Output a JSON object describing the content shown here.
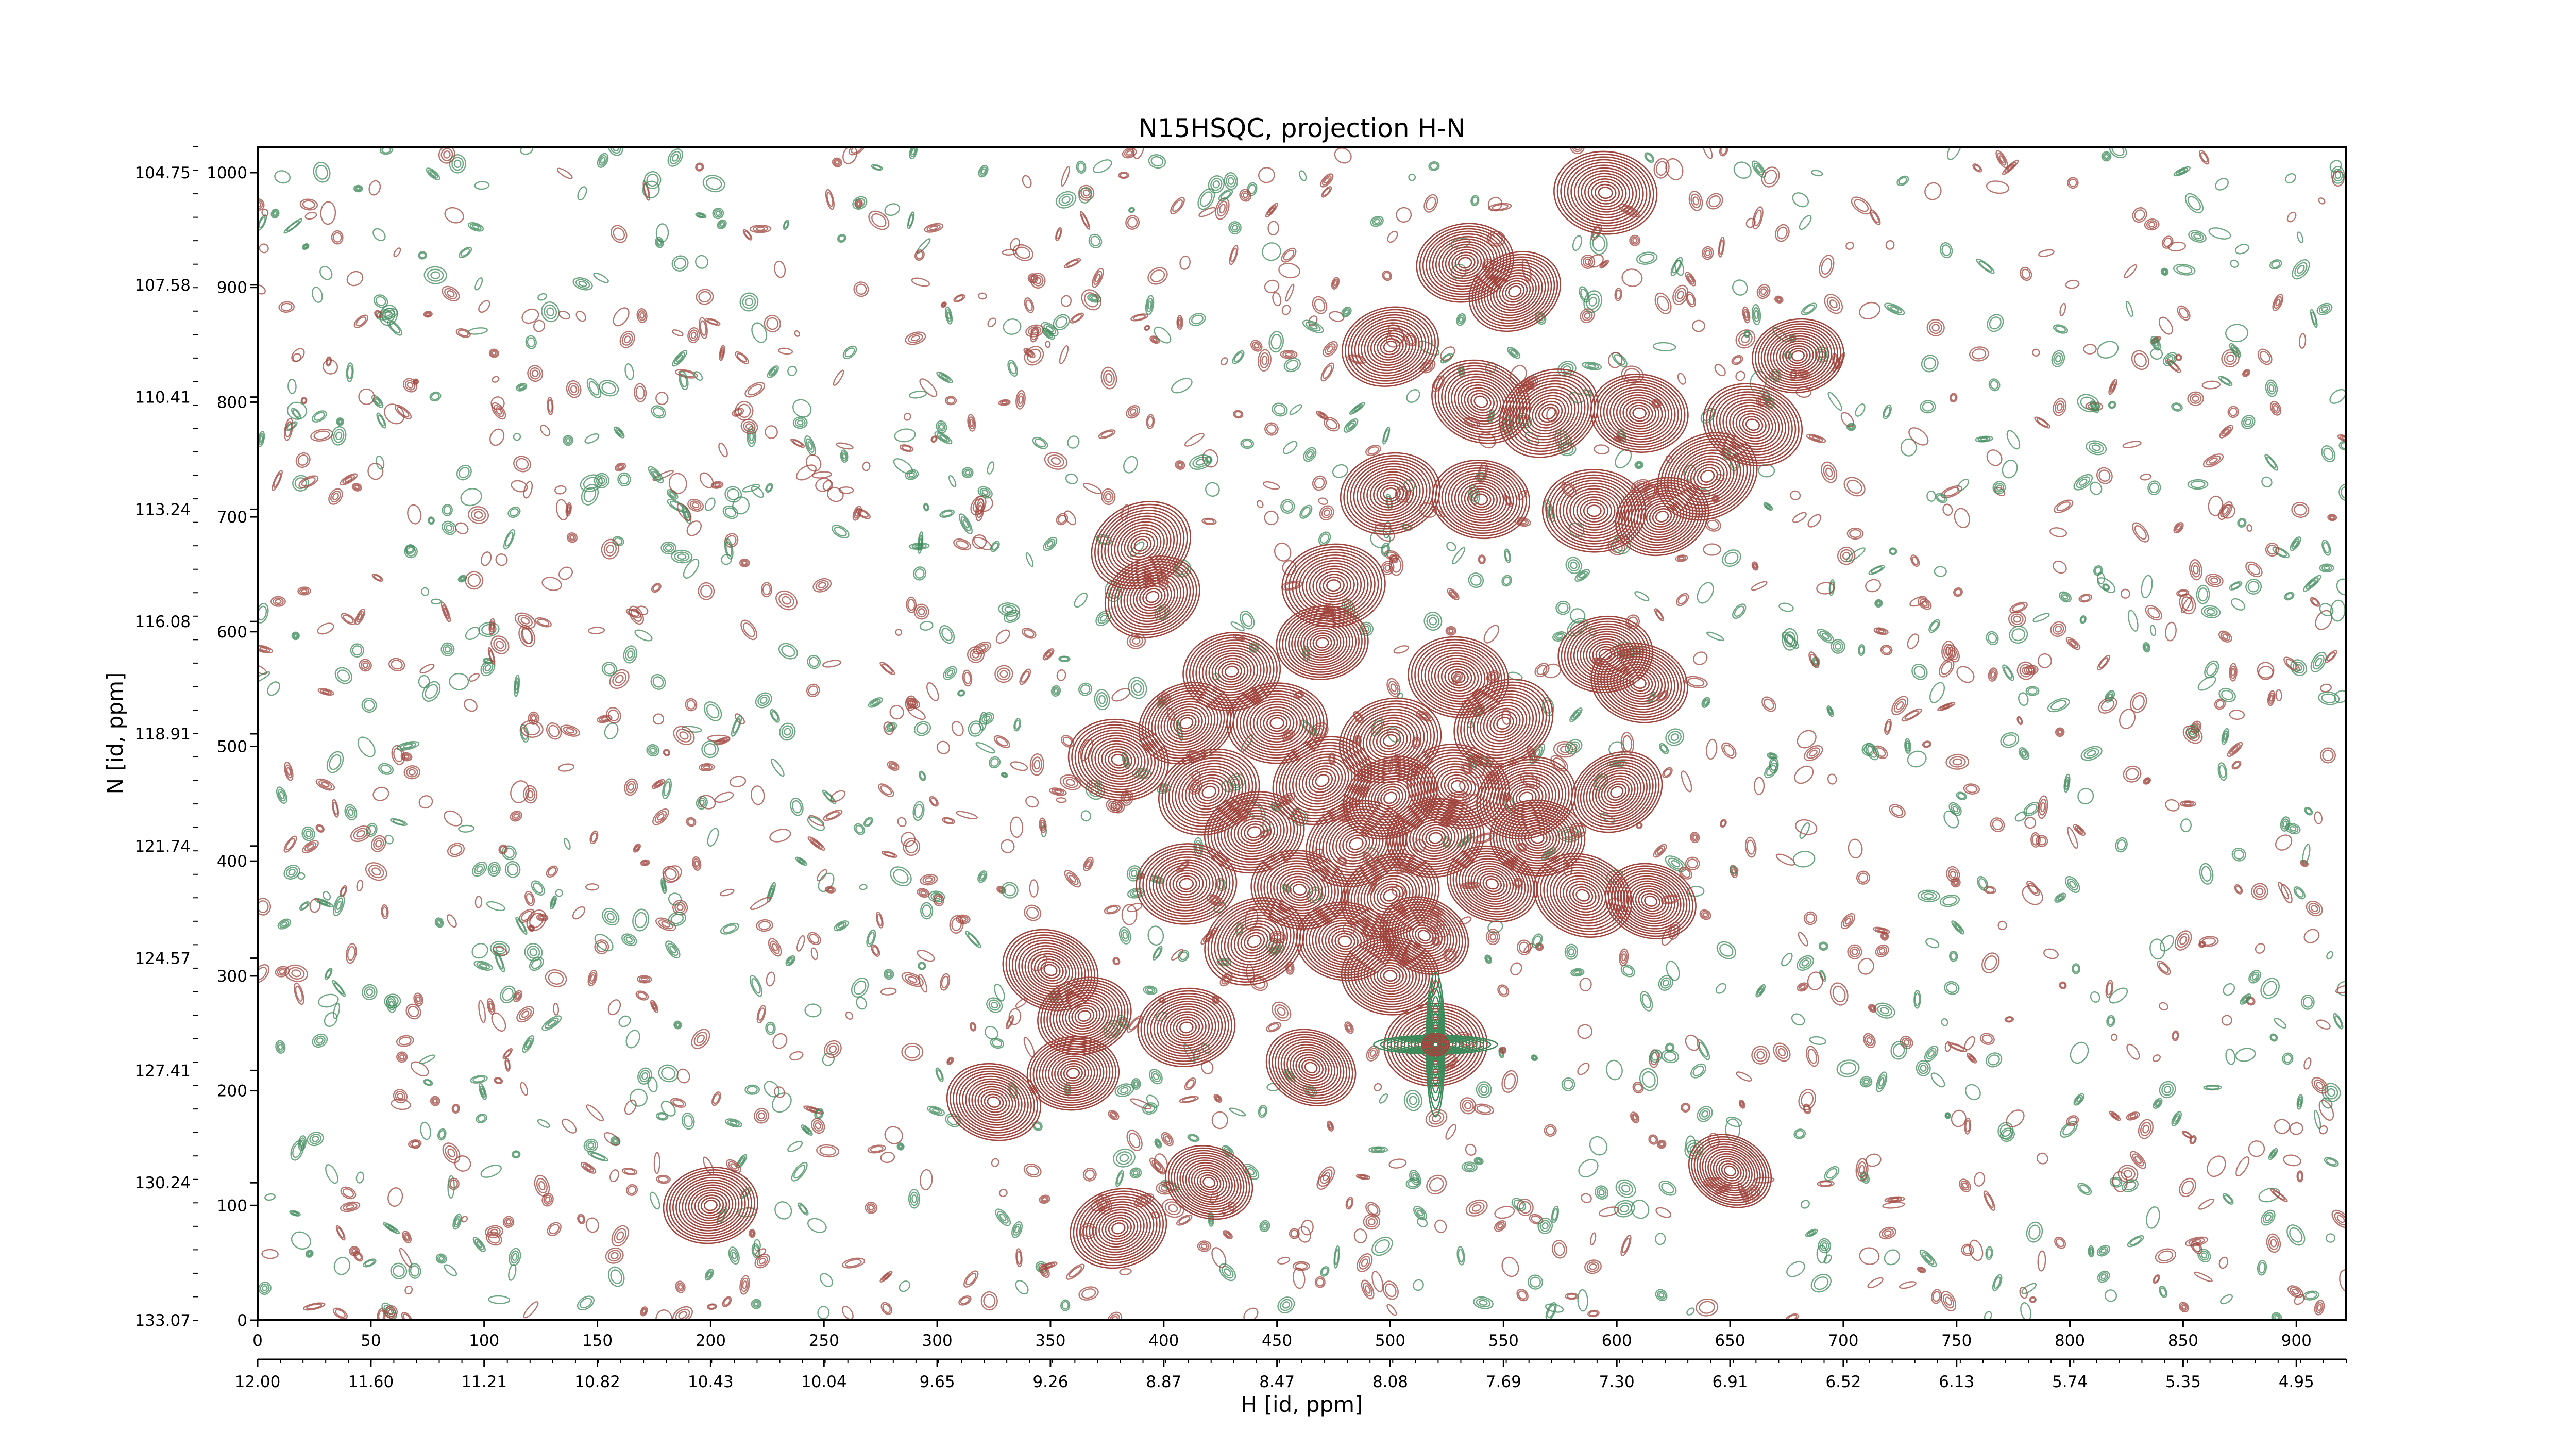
{
  "chart_data": {
    "type": "heatmap",
    "title": "N15HSQC, projection H-N",
    "xlabel": "H [id, ppm]",
    "ylabel": "N [id, ppm]",
    "x_index_ticks": [
      "0",
      "50",
      "100",
      "150",
      "200",
      "250",
      "300",
      "350",
      "400",
      "450",
      "500",
      "550",
      "600",
      "650",
      "700",
      "750",
      "800",
      "850",
      "900"
    ],
    "x_ppm_ticks": [
      "12.00",
      "11.60",
      "11.21",
      "10.82",
      "10.43",
      "10.04",
      "9.65",
      "9.26",
      "8.87",
      "8.47",
      "8.08",
      "7.69",
      "7.30",
      "6.91",
      "6.52",
      "6.13",
      "5.74",
      "5.35",
      "4.95"
    ],
    "y_index_ticks": [
      "1000",
      "900",
      "800",
      "700",
      "600",
      "500",
      "400",
      "300",
      "200",
      "100",
      "0"
    ],
    "y_ppm_ticks": [
      "104.75",
      "107.58",
      "110.41",
      "113.24",
      "116.08",
      "118.91",
      "121.74",
      "124.57",
      "127.41",
      "130.24",
      "133.07"
    ],
    "xlim": [
      0,
      922
    ],
    "ylim": [
      0,
      1022
    ],
    "colors": {
      "positive": "#a0453d",
      "negative": "#3d8a5a"
    },
    "peaks": [
      {
        "x": 595,
        "y": 982,
        "a": 1.0
      },
      {
        "x": 533,
        "y": 921,
        "a": 0.9
      },
      {
        "x": 555,
        "y": 896,
        "a": 0.85
      },
      {
        "x": 500,
        "y": 848,
        "a": 0.9
      },
      {
        "x": 540,
        "y": 800,
        "a": 0.95
      },
      {
        "x": 570,
        "y": 790,
        "a": 1.0
      },
      {
        "x": 610,
        "y": 790,
        "a": 0.9
      },
      {
        "x": 660,
        "y": 780,
        "a": 0.95
      },
      {
        "x": 680,
        "y": 840,
        "a": 0.8
      },
      {
        "x": 640,
        "y": 735,
        "a": 1.0
      },
      {
        "x": 500,
        "y": 720,
        "a": 0.95
      },
      {
        "x": 540,
        "y": 715,
        "a": 0.9
      },
      {
        "x": 590,
        "y": 705,
        "a": 1.0
      },
      {
        "x": 620,
        "y": 700,
        "a": 0.85
      },
      {
        "x": 390,
        "y": 675,
        "a": 1.0
      },
      {
        "x": 395,
        "y": 630,
        "a": 0.9
      },
      {
        "x": 475,
        "y": 640,
        "a": 1.0
      },
      {
        "x": 470,
        "y": 590,
        "a": 0.8
      },
      {
        "x": 430,
        "y": 565,
        "a": 0.9
      },
      {
        "x": 595,
        "y": 580,
        "a": 0.85
      },
      {
        "x": 530,
        "y": 560,
        "a": 0.95
      },
      {
        "x": 550,
        "y": 520,
        "a": 1.0
      },
      {
        "x": 610,
        "y": 555,
        "a": 0.9
      },
      {
        "x": 410,
        "y": 520,
        "a": 0.9
      },
      {
        "x": 450,
        "y": 520,
        "a": 0.95
      },
      {
        "x": 500,
        "y": 505,
        "a": 1.0
      },
      {
        "x": 380,
        "y": 488,
        "a": 0.95
      },
      {
        "x": 420,
        "y": 460,
        "a": 1.0
      },
      {
        "x": 470,
        "y": 470,
        "a": 1.0
      },
      {
        "x": 500,
        "y": 455,
        "a": 0.9
      },
      {
        "x": 530,
        "y": 465,
        "a": 1.0
      },
      {
        "x": 560,
        "y": 455,
        "a": 0.95
      },
      {
        "x": 600,
        "y": 460,
        "a": 0.85
      },
      {
        "x": 440,
        "y": 425,
        "a": 0.95
      },
      {
        "x": 485,
        "y": 415,
        "a": 1.0
      },
      {
        "x": 520,
        "y": 420,
        "a": 0.9
      },
      {
        "x": 565,
        "y": 420,
        "a": 0.85
      },
      {
        "x": 410,
        "y": 380,
        "a": 0.95
      },
      {
        "x": 460,
        "y": 375,
        "a": 0.9
      },
      {
        "x": 500,
        "y": 370,
        "a": 0.95
      },
      {
        "x": 545,
        "y": 380,
        "a": 0.8
      },
      {
        "x": 585,
        "y": 370,
        "a": 0.95
      },
      {
        "x": 615,
        "y": 365,
        "a": 0.8
      },
      {
        "x": 440,
        "y": 330,
        "a": 1.0
      },
      {
        "x": 480,
        "y": 330,
        "a": 0.9
      },
      {
        "x": 515,
        "y": 335,
        "a": 0.8
      },
      {
        "x": 350,
        "y": 305,
        "a": 0.9
      },
      {
        "x": 365,
        "y": 265,
        "a": 0.85
      },
      {
        "x": 410,
        "y": 255,
        "a": 0.9
      },
      {
        "x": 500,
        "y": 300,
        "a": 0.9
      },
      {
        "x": 325,
        "y": 190,
        "a": 0.85
      },
      {
        "x": 360,
        "y": 215,
        "a": 0.8
      },
      {
        "x": 465,
        "y": 220,
        "a": 0.8
      },
      {
        "x": 520,
        "y": 240,
        "a": 1.0
      },
      {
        "x": 200,
        "y": 100,
        "a": 0.85
      },
      {
        "x": 380,
        "y": 80,
        "a": 0.9
      },
      {
        "x": 420,
        "y": 120,
        "a": 0.75
      },
      {
        "x": 650,
        "y": 130,
        "a": 0.7
      }
    ],
    "cross_peak": {
      "x": 520,
      "y": 240
    }
  }
}
